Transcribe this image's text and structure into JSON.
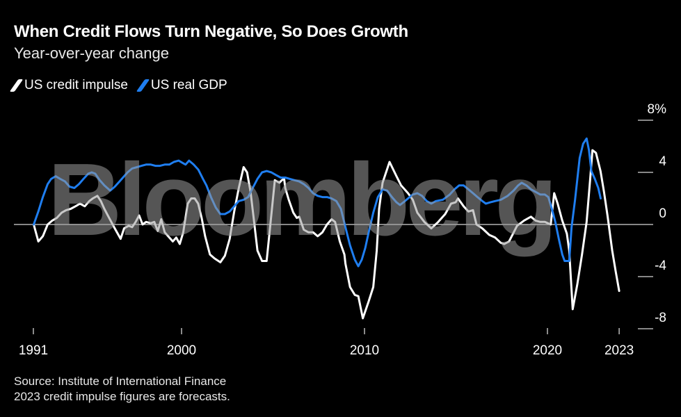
{
  "header": {
    "title": "When Credit Flows Turn Negative, So Does Growth",
    "subtitle": "Year-over-year change"
  },
  "footer": {
    "source": "Source: Institute of International Finance",
    "note": "2023 credit impulse figures are forecasts."
  },
  "watermark": "Bloomberg",
  "chart_data": {
    "type": "line",
    "title": "When Credit Flows Turn Negative, So Does Growth",
    "subtitle": "Year-over-year change",
    "xlabel": "",
    "ylabel": "",
    "ylim": [
      -8,
      8
    ],
    "xlim": [
      1991.9,
      2023.92
    ],
    "grid": "horizontal ticks at right, zero line",
    "legend": "top-left",
    "background": "#000000",
    "y_ticks": [
      {
        "value": 8,
        "label": "8%"
      },
      {
        "value": 4,
        "label": "4"
      },
      {
        "value": 0,
        "label": "0"
      },
      {
        "value": -4,
        "label": "-4"
      },
      {
        "value": -8,
        "label": "-8"
      }
    ],
    "x_ticks": [
      {
        "value": 1991.9,
        "label": "1991"
      },
      {
        "value": 2000,
        "label": "2000"
      },
      {
        "value": 2010,
        "label": "2010"
      },
      {
        "value": 2020,
        "label": "2020"
      },
      {
        "value": 2023.92,
        "label": "2023"
      }
    ],
    "series": [
      {
        "name": "US credit impulse",
        "color": "#ffffff",
        "points": [
          [
            1991.92,
            0.0
          ],
          [
            1992.17,
            -1.3
          ],
          [
            1992.42,
            -0.9
          ],
          [
            1992.68,
            0.0
          ],
          [
            1992.93,
            0.3
          ],
          [
            1993.18,
            0.5
          ],
          [
            1993.44,
            0.9
          ],
          [
            1993.69,
            1.1
          ],
          [
            1993.94,
            1.2
          ],
          [
            1994.2,
            1.4
          ],
          [
            1994.45,
            1.6
          ],
          [
            1994.71,
            1.4
          ],
          [
            1994.96,
            1.8
          ],
          [
            1995.15,
            2.0
          ],
          [
            1995.4,
            2.2
          ],
          [
            1995.59,
            1.8
          ],
          [
            1995.78,
            1.2
          ],
          [
            1996.04,
            0.5
          ],
          [
            1996.35,
            -0.3
          ],
          [
            1996.67,
            -1.1
          ],
          [
            1996.86,
            -0.3
          ],
          [
            1997.11,
            -0.1
          ],
          [
            1997.3,
            -0.2
          ],
          [
            1997.49,
            0.2
          ],
          [
            1997.68,
            0.7
          ],
          [
            1997.87,
            0.0
          ],
          [
            1998.06,
            0.2
          ],
          [
            1998.32,
            0.1
          ],
          [
            1998.51,
            0.2
          ],
          [
            1998.7,
            -0.5
          ],
          [
            1998.89,
            0.4
          ],
          [
            1999.08,
            -0.6
          ],
          [
            1999.33,
            -1.0
          ],
          [
            1999.52,
            -1.3
          ],
          [
            1999.71,
            -1.0
          ],
          [
            1999.9,
            -1.5
          ],
          [
            2000.09,
            -0.6
          ],
          [
            2000.34,
            1.6
          ],
          [
            2000.53,
            2.0
          ],
          [
            2000.72,
            2.0
          ],
          [
            2000.91,
            1.6
          ],
          [
            2001.1,
            0.5
          ],
          [
            2001.29,
            -0.9
          ],
          [
            2001.55,
            -2.3
          ],
          [
            2001.8,
            -2.6
          ],
          [
            2002.12,
            -2.9
          ],
          [
            2002.37,
            -2.4
          ],
          [
            2002.63,
            -1.1
          ],
          [
            2002.88,
            1.0
          ],
          [
            2003.13,
            2.8
          ],
          [
            2003.39,
            4.4
          ],
          [
            2003.58,
            4.0
          ],
          [
            2003.77,
            2.5
          ],
          [
            2003.96,
            0.3
          ],
          [
            2004.15,
            -2.0
          ],
          [
            2004.4,
            -2.8
          ],
          [
            2004.65,
            -2.8
          ],
          [
            2004.84,
            -0.2
          ],
          [
            2005.1,
            3.4
          ],
          [
            2005.35,
            3.2
          ],
          [
            2005.48,
            3.4
          ],
          [
            2005.61,
            3.5
          ],
          [
            2005.67,
            2.8
          ],
          [
            2005.86,
            1.9
          ],
          [
            2006.11,
            0.9
          ],
          [
            2006.3,
            0.5
          ],
          [
            2006.43,
            0.6
          ],
          [
            2006.68,
            -0.4
          ],
          [
            2006.94,
            -0.6
          ],
          [
            2007.19,
            -0.6
          ],
          [
            2007.44,
            -0.9
          ],
          [
            2007.7,
            -0.6
          ],
          [
            2007.95,
            0.0
          ],
          [
            2008.2,
            0.4
          ],
          [
            2008.39,
            0.2
          ],
          [
            2008.65,
            -1.3
          ],
          [
            2008.9,
            -2.3
          ],
          [
            2008.96,
            -3.0
          ],
          [
            2009.21,
            -4.8
          ],
          [
            2009.47,
            -5.4
          ],
          [
            2009.66,
            -5.5
          ],
          [
            2009.91,
            -7.2
          ],
          [
            2010.23,
            -5.9
          ],
          [
            2010.48,
            -4.8
          ],
          [
            2010.67,
            -2.0
          ],
          [
            2010.8,
            1.2
          ],
          [
            2010.99,
            3.2
          ],
          [
            2011.37,
            4.8
          ],
          [
            2011.75,
            3.7
          ],
          [
            2012.0,
            3.0
          ],
          [
            2012.38,
            2.4
          ],
          [
            2012.64,
            1.9
          ],
          [
            2012.89,
            0.9
          ],
          [
            2013.27,
            0.2
          ],
          [
            2013.65,
            -0.3
          ],
          [
            2014.03,
            0.2
          ],
          [
            2014.41,
            0.8
          ],
          [
            2014.73,
            1.6
          ],
          [
            2014.98,
            1.7
          ],
          [
            2015.11,
            2.0
          ],
          [
            2015.42,
            1.4
          ],
          [
            2015.68,
            1.0
          ],
          [
            2015.93,
            1.1
          ],
          [
            2016.12,
            0.0
          ],
          [
            2016.44,
            -0.3
          ],
          [
            2016.82,
            -0.8
          ],
          [
            2017.14,
            -1.0
          ],
          [
            2017.45,
            -1.4
          ],
          [
            2017.64,
            -1.5
          ],
          [
            2017.9,
            -1.3
          ],
          [
            2018.34,
            -0.1
          ],
          [
            2018.72,
            0.3
          ],
          [
            2019.1,
            0.6
          ],
          [
            2019.35,
            0.3
          ],
          [
            2019.61,
            0.2
          ],
          [
            2019.86,
            0.2
          ],
          [
            2020.18,
            0.0
          ],
          [
            2020.37,
            2.4
          ],
          [
            2020.56,
            1.6
          ],
          [
            2020.81,
            0.3
          ],
          [
            2021.06,
            -0.7
          ],
          [
            2021.19,
            -2.0
          ],
          [
            2021.38,
            -6.5
          ],
          [
            2021.63,
            -4.6
          ],
          [
            2021.89,
            -2.3
          ],
          [
            2022.14,
            0.2
          ],
          [
            2022.33,
            3.4
          ],
          [
            2022.46,
            5.7
          ],
          [
            2022.65,
            5.5
          ],
          [
            2022.9,
            4.1
          ],
          [
            2023.09,
            2.5
          ],
          [
            2023.28,
            0.7
          ],
          [
            2023.54,
            -2.0
          ],
          [
            2023.73,
            -3.6
          ],
          [
            2023.92,
            -5.1
          ]
        ]
      },
      {
        "name": "US real GDP",
        "color": "#1f7ef0",
        "points": [
          [
            1991.92,
            0.0
          ],
          [
            1992.17,
            1.0
          ],
          [
            1992.42,
            2.1
          ],
          [
            1992.68,
            3.1
          ],
          [
            1992.87,
            3.5
          ],
          [
            1993.12,
            3.7
          ],
          [
            1993.37,
            3.5
          ],
          [
            1993.63,
            3.3
          ],
          [
            1993.88,
            2.9
          ],
          [
            1994.14,
            2.8
          ],
          [
            1994.39,
            3.1
          ],
          [
            1994.64,
            3.5
          ],
          [
            1994.9,
            3.9
          ],
          [
            1995.09,
            4.0
          ],
          [
            1995.28,
            3.9
          ],
          [
            1995.53,
            3.4
          ],
          [
            1995.78,
            3.0
          ],
          [
            1996.1,
            2.6
          ],
          [
            1996.35,
            2.9
          ],
          [
            1996.61,
            3.3
          ],
          [
            1996.86,
            3.7
          ],
          [
            1997.05,
            4.0
          ],
          [
            1997.3,
            4.3
          ],
          [
            1997.56,
            4.4
          ],
          [
            1997.81,
            4.5
          ],
          [
            1998.06,
            4.6
          ],
          [
            1998.32,
            4.6
          ],
          [
            1998.57,
            4.5
          ],
          [
            1998.82,
            4.5
          ],
          [
            1999.08,
            4.6
          ],
          [
            1999.33,
            4.6
          ],
          [
            1999.58,
            4.8
          ],
          [
            1999.84,
            4.9
          ],
          [
            2000.09,
            4.7
          ],
          [
            2000.22,
            4.6
          ],
          [
            2000.41,
            4.9
          ],
          [
            2000.66,
            4.6
          ],
          [
            2000.92,
            4.2
          ],
          [
            2001.17,
            3.5
          ],
          [
            2001.36,
            3.0
          ],
          [
            2001.61,
            2.1
          ],
          [
            2001.87,
            1.3
          ],
          [
            2002.12,
            0.8
          ],
          [
            2002.37,
            0.8
          ],
          [
            2002.63,
            1.0
          ],
          [
            2002.88,
            1.4
          ],
          [
            2003.13,
            1.8
          ],
          [
            2003.39,
            1.9
          ],
          [
            2003.64,
            2.1
          ],
          [
            2003.89,
            2.8
          ],
          [
            2004.15,
            3.5
          ],
          [
            2004.4,
            4.0
          ],
          [
            2004.65,
            4.1
          ],
          [
            2004.91,
            4.0
          ],
          [
            2005.16,
            3.8
          ],
          [
            2005.42,
            3.6
          ],
          [
            2005.67,
            3.6
          ],
          [
            2005.92,
            3.5
          ],
          [
            2006.18,
            3.4
          ],
          [
            2006.43,
            3.3
          ],
          [
            2006.68,
            3.1
          ],
          [
            2006.94,
            2.8
          ],
          [
            2007.19,
            2.4
          ],
          [
            2007.44,
            2.2
          ],
          [
            2007.7,
            2.1
          ],
          [
            2007.95,
            2.1
          ],
          [
            2008.2,
            2.0
          ],
          [
            2008.46,
            1.8
          ],
          [
            2008.71,
            1.2
          ],
          [
            2008.96,
            -0.2
          ],
          [
            2009.21,
            -1.6
          ],
          [
            2009.47,
            -2.7
          ],
          [
            2009.66,
            -3.2
          ],
          [
            2009.85,
            -2.7
          ],
          [
            2010.04,
            -1.8
          ],
          [
            2010.23,
            -0.6
          ],
          [
            2010.48,
            0.9
          ],
          [
            2010.73,
            2.1
          ],
          [
            2010.99,
            2.7
          ],
          [
            2011.24,
            2.6
          ],
          [
            2011.5,
            2.1
          ],
          [
            2011.75,
            1.7
          ],
          [
            2011.94,
            1.5
          ],
          [
            2012.13,
            1.7
          ],
          [
            2012.38,
            2.0
          ],
          [
            2012.64,
            2.3
          ],
          [
            2012.89,
            2.4
          ],
          [
            2013.14,
            2.2
          ],
          [
            2013.4,
            1.8
          ],
          [
            2013.65,
            1.6
          ],
          [
            2013.9,
            1.8
          ],
          [
            2014.28,
            1.9
          ],
          [
            2014.66,
            2.3
          ],
          [
            2014.92,
            2.7
          ],
          [
            2015.17,
            3.0
          ],
          [
            2015.42,
            3.0
          ],
          [
            2015.68,
            2.7
          ],
          [
            2015.93,
            2.4
          ],
          [
            2016.18,
            2.1
          ],
          [
            2016.44,
            1.8
          ],
          [
            2016.63,
            1.6
          ],
          [
            2016.88,
            1.7
          ],
          [
            2017.14,
            1.8
          ],
          [
            2017.45,
            1.9
          ],
          [
            2017.83,
            2.2
          ],
          [
            2018.15,
            2.6
          ],
          [
            2018.4,
            3.0
          ],
          [
            2018.59,
            3.2
          ],
          [
            2018.85,
            3.0
          ],
          [
            2019.1,
            2.7
          ],
          [
            2019.35,
            2.5
          ],
          [
            2019.61,
            2.3
          ],
          [
            2019.86,
            2.3
          ],
          [
            2020.05,
            2.1
          ],
          [
            2020.24,
            1.2
          ],
          [
            2020.43,
            0.2
          ],
          [
            2020.62,
            -1.1
          ],
          [
            2020.81,
            -2.3
          ],
          [
            2020.94,
            -2.8
          ],
          [
            2021.19,
            -2.8
          ],
          [
            2021.32,
            -0.2
          ],
          [
            2021.51,
            1.9
          ],
          [
            2021.76,
            5.1
          ],
          [
            2021.95,
            6.2
          ],
          [
            2022.14,
            6.6
          ],
          [
            2022.27,
            5.7
          ],
          [
            2022.4,
            4.1
          ],
          [
            2022.59,
            3.5
          ],
          [
            2022.78,
            2.8
          ],
          [
            2022.91,
            2.0
          ]
        ]
      }
    ]
  }
}
